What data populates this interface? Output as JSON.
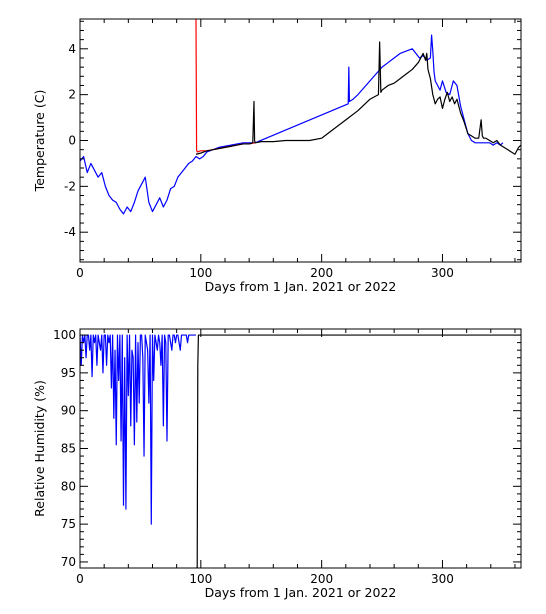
{
  "chart_data": [
    {
      "type": "line",
      "xlabel": "Days from 1 Jan. 2021 or 2022",
      "ylabel": "Temperature (C)",
      "xlim": [
        0,
        365
      ],
      "ylim": [
        -5.3,
        5.3
      ],
      "xticks": [
        0,
        100,
        200,
        300
      ],
      "yticks": [
        -4,
        -2,
        0,
        2,
        4
      ],
      "grid": false,
      "series": [
        {
          "color": "#0000ff",
          "x": [
            0,
            3,
            6,
            9,
            12,
            15,
            18,
            21,
            24,
            27,
            30,
            33,
            36,
            39,
            42,
            45,
            48,
            51,
            54,
            57,
            60,
            63,
            66,
            69,
            72,
            75,
            78,
            81,
            84,
            87,
            90,
            93,
            96,
            99,
            102,
            105,
            110,
            115,
            120,
            125,
            130,
            135,
            140,
            145,
            222,
            222.5,
            223,
            226,
            230,
            235,
            240,
            245,
            250,
            255,
            260,
            265,
            270,
            275,
            278,
            281,
            284,
            287,
            290,
            291,
            292,
            293,
            294,
            296,
            298,
            300,
            303,
            306,
            309,
            312,
            315,
            318,
            321,
            324,
            327,
            330,
            333,
            336,
            339,
            342,
            345,
            348,
            350
          ],
          "y": [
            -0.9,
            -0.7,
            -1.4,
            -1.0,
            -1.3,
            -1.6,
            -1.4,
            -2.0,
            -2.4,
            -2.6,
            -2.7,
            -3.0,
            -3.2,
            -2.9,
            -3.1,
            -2.7,
            -2.2,
            -1.9,
            -1.6,
            -2.7,
            -3.1,
            -2.8,
            -2.5,
            -2.9,
            -2.6,
            -2.1,
            -2.0,
            -1.6,
            -1.4,
            -1.2,
            -1.0,
            -0.9,
            -0.7,
            -0.8,
            -0.7,
            -0.5,
            -0.4,
            -0.3,
            -0.25,
            -0.2,
            -0.15,
            -0.1,
            -0.1,
            -0.1,
            1.6,
            3.2,
            1.7,
            1.8,
            2.0,
            2.3,
            2.6,
            2.9,
            3.2,
            3.4,
            3.6,
            3.8,
            3.9,
            4.0,
            3.8,
            3.6,
            3.7,
            3.5,
            3.6,
            4.6,
            3.9,
            3.0,
            2.6,
            2.4,
            2.2,
            2.6,
            2.1,
            2.0,
            2.6,
            2.4,
            1.5,
            0.9,
            0.3,
            0.0,
            -0.1,
            -0.1,
            -0.1,
            -0.1,
            -0.1,
            -0.2,
            -0.1,
            -0.2,
            -0.1
          ]
        },
        {
          "color": "#ff0000",
          "x": [
            96,
            96.5,
            97,
            100,
            105,
            110,
            115,
            120,
            125,
            130,
            135,
            140,
            145
          ],
          "y": [
            5.3,
            -0.4,
            -0.5,
            -0.45,
            -0.45,
            -0.4,
            -0.35,
            -0.3,
            -0.25,
            -0.2,
            -0.15,
            -0.15,
            -0.1
          ],
          "peak_x": 96,
          "peak_y": 5.3
        },
        {
          "color": "#000000",
          "x": [
            96,
            100,
            105,
            110,
            115,
            120,
            125,
            130,
            135,
            140,
            143,
            144,
            144.5,
            145,
            150,
            160,
            170,
            180,
            190,
            200,
            210,
            220,
            230,
            240,
            247,
            248,
            249,
            250,
            255,
            260,
            265,
            270,
            275,
            280,
            282,
            284,
            286,
            287,
            288,
            290,
            292,
            294,
            296,
            298,
            300,
            302,
            304,
            306,
            308,
            310,
            312,
            315,
            318,
            321,
            324,
            327,
            330,
            332,
            333,
            334,
            336,
            339,
            342,
            345,
            348,
            351,
            354,
            357,
            360,
            363,
            365
          ],
          "y": [
            -0.6,
            -0.55,
            -0.45,
            -0.4,
            -0.35,
            -0.3,
            -0.25,
            -0.2,
            -0.15,
            -0.15,
            -0.1,
            1.7,
            0.0,
            -0.1,
            -0.05,
            -0.05,
            0.0,
            0.0,
            0.0,
            0.1,
            0.5,
            0.9,
            1.3,
            1.8,
            2.0,
            4.3,
            2.1,
            2.2,
            2.4,
            2.5,
            2.7,
            2.9,
            3.1,
            3.4,
            3.6,
            3.8,
            3.5,
            3.8,
            3.1,
            2.7,
            2.0,
            1.6,
            1.8,
            1.9,
            1.4,
            1.8,
            2.1,
            1.7,
            1.9,
            1.6,
            1.8,
            1.2,
            0.8,
            0.3,
            0.2,
            0.1,
            0.1,
            0.9,
            0.2,
            0.1,
            0.1,
            0.0,
            -0.1,
            0.0,
            -0.2,
            -0.3,
            -0.4,
            -0.5,
            -0.6,
            -0.3,
            -0.2
          ]
        }
      ]
    },
    {
      "type": "line",
      "xlabel": "Days from 1 Jan. 2021 or 2022",
      "ylabel": "Relative Humidity (%)",
      "xlim": [
        0,
        365
      ],
      "ylim": [
        69.2,
        100.8
      ],
      "xticks": [
        0,
        100,
        200,
        300
      ],
      "yticks": [
        70,
        75,
        80,
        85,
        90,
        95,
        100
      ],
      "grid": false,
      "series": [
        {
          "color": "#0000ff",
          "x": [
            0,
            1,
            2,
            3,
            4,
            5,
            6,
            7,
            8,
            9,
            10,
            11,
            12,
            13,
            14,
            15,
            16,
            17,
            18,
            19,
            20,
            21,
            22,
            23,
            24,
            25,
            26,
            27,
            28,
            29,
            30,
            31,
            32,
            33,
            34,
            35,
            36,
            37,
            38,
            39,
            40,
            41,
            42,
            43,
            44,
            45,
            46,
            47,
            48,
            49,
            50,
            51,
            52,
            53,
            54,
            55,
            56,
            57,
            58,
            59,
            60,
            61,
            62,
            63,
            64,
            65,
            66,
            67,
            68,
            69,
            70,
            71,
            72,
            73,
            74,
            75,
            76,
            77,
            78,
            79,
            80,
            81,
            82,
            83,
            84,
            85,
            86,
            87,
            88,
            89,
            90,
            91,
            92,
            93,
            94,
            95,
            96
          ],
          "y": [
            100,
            96,
            100,
            99,
            100,
            97,
            100,
            100,
            98,
            100,
            94.5,
            100,
            99,
            100,
            96,
            100,
            99,
            98,
            100,
            95,
            100,
            100,
            96,
            100,
            99,
            100,
            93,
            100,
            89,
            98,
            85.5,
            100,
            94,
            100,
            86,
            100,
            77.5,
            97,
            77,
            100,
            92,
            100,
            88,
            98,
            97,
            85.5,
            100,
            88.5,
            99,
            91,
            100,
            100,
            97,
            84,
            100,
            99,
            98,
            91,
            100,
            75,
            100,
            94,
            100,
            99,
            98,
            100,
            99,
            96,
            100,
            88,
            100,
            99,
            86,
            100,
            100,
            99,
            98,
            100,
            100,
            99,
            100,
            100,
            99,
            98,
            100,
            100,
            100,
            100,
            100,
            99,
            100,
            100,
            100,
            100,
            100,
            100,
            100
          ]
        },
        {
          "color": "#000000",
          "x": [
            96,
            97,
            97.5,
            98,
            99,
            100,
            110,
            150,
            200,
            250,
            300,
            350,
            365
          ],
          "y": [
            69.2,
            69.2,
            96,
            100,
            100,
            100,
            100,
            100,
            100,
            100,
            100,
            100,
            100
          ]
        }
      ]
    }
  ]
}
